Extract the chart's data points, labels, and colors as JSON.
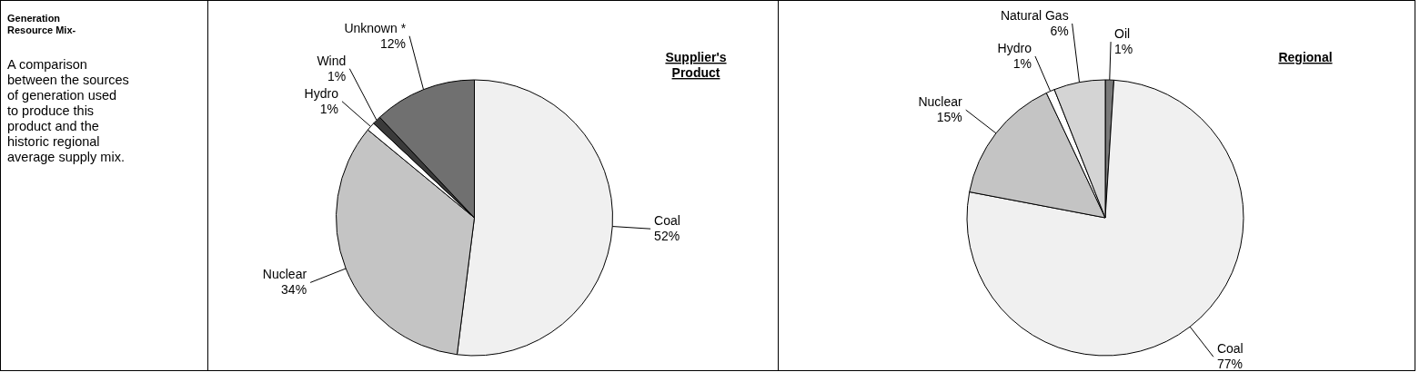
{
  "chart_data": [
    {
      "type": "other",
      "title": "Generation Resource Mix-",
      "annotations": [
        "A comparison between the sources of generation used to produce this product and the historic regional average supply mix."
      ]
    },
    {
      "type": "pie",
      "title": "Supplier's Product",
      "categories": [
        "Coal",
        "Nuclear",
        "Hydro",
        "Wind",
        "Unknown *"
      ],
      "values": [
        52,
        34,
        1,
        1,
        12
      ],
      "colors": [
        "#f0f0f0",
        "#c4c4c4",
        "#ffffff",
        "#3a3a3a",
        "#707070"
      ],
      "value_labels": [
        "52%",
        "34%",
        "1%",
        "1%",
        "12%"
      ]
    },
    {
      "type": "pie",
      "title": "Regional",
      "categories": [
        "Oil",
        "Coal",
        "Nuclear",
        "Hydro",
        "Natural Gas"
      ],
      "values": [
        1,
        77,
        15,
        1,
        6
      ],
      "colors": [
        "#7a7a7a",
        "#f0f0f0",
        "#c4c4c4",
        "#ffffff",
        "#d4d4d4"
      ],
      "value_labels": [
        "1%",
        "77%",
        "15%",
        "1%",
        "6%"
      ]
    }
  ]
}
